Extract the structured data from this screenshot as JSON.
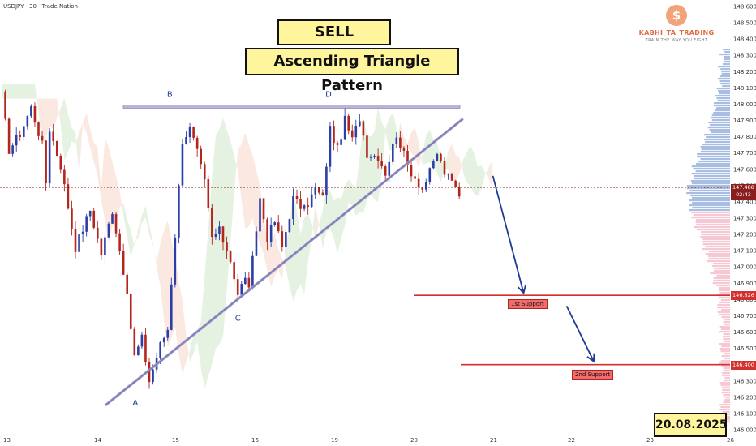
{
  "header": {
    "symbol": "USDJPY · 30 · Trade Nation"
  },
  "titles": {
    "line1": "SELL USD/JPY",
    "line2": "Ascending Triangle Pattern"
  },
  "logo": {
    "coin": "$",
    "name": "KABHI_TA_TRADING",
    "tagline": "TRAIN THE WAY YOU FIGHT"
  },
  "date_stamp": "20.08.2025",
  "supports": {
    "first": "1st Support",
    "second": "2nd Support"
  },
  "price_tags": {
    "current_price": "147.488",
    "current_timer": "02:43",
    "support1": "146.826",
    "support2": "146.400"
  },
  "pattern_points": [
    "A",
    "B",
    "C",
    "D"
  ],
  "colors": {
    "bullish": "#2c3ea8",
    "bearish": "#b3261e",
    "support": "#d32f2f",
    "arrow": "#1f3a93",
    "trendline": "#9a9ac8",
    "title_bg": "#fff59d"
  },
  "chart_data": {
    "type": "candlestick",
    "title": "",
    "xlabel": "",
    "ylabel": "",
    "ylim": [
      146.0,
      148.6
    ],
    "y_ticks": [
      "148.600",
      "148.500",
      "148.400",
      "148.300",
      "148.200",
      "148.100",
      "148.000",
      "147.900",
      "147.800",
      "147.700",
      "147.600",
      "147.500",
      "147.400",
      "147.300",
      "147.200",
      "147.100",
      "147.000",
      "146.900",
      "146.800",
      "146.700",
      "146.600",
      "146.500",
      "146.400",
      "146.300",
      "146.200",
      "146.100",
      "146.000"
    ],
    "x_ticks": [
      "13",
      "14",
      "15",
      "16",
      "19",
      "20",
      "21",
      "22",
      "23",
      "26"
    ],
    "price_path": [
      [
        0.0,
        148.05
      ],
      [
        2,
        147.72
      ],
      [
        5,
        147.82
      ],
      [
        8,
        147.98
      ],
      [
        11,
        147.75
      ],
      [
        12,
        147.52
      ],
      [
        13,
        147.85
      ],
      [
        16,
        147.62
      ],
      [
        20,
        147.12
      ],
      [
        24,
        147.35
      ],
      [
        27,
        147.08
      ],
      [
        30,
        147.35
      ],
      [
        33,
        146.98
      ],
      [
        36,
        146.45
      ],
      [
        38,
        146.56
      ],
      [
        40,
        146.3
      ],
      [
        43,
        146.52
      ],
      [
        45,
        146.62
      ],
      [
        47,
        147.2
      ],
      [
        49,
        147.78
      ],
      [
        51,
        147.85
      ],
      [
        53,
        147.7
      ],
      [
        55,
        147.52
      ],
      [
        57,
        147.18
      ],
      [
        59,
        147.22
      ],
      [
        62,
        147.05
      ],
      [
        64,
        146.82
      ],
      [
        66,
        146.95
      ],
      [
        67,
        146.85
      ],
      [
        70,
        147.42
      ],
      [
        72,
        147.18
      ],
      [
        74,
        147.28
      ],
      [
        76,
        147.12
      ],
      [
        79,
        147.42
      ],
      [
        82,
        147.35
      ],
      [
        85,
        147.48
      ],
      [
        87,
        147.42
      ],
      [
        89,
        147.85
      ],
      [
        91,
        147.72
      ],
      [
        93,
        147.9
      ],
      [
        95,
        147.78
      ],
      [
        97,
        147.92
      ],
      [
        99,
        147.7
      ],
      [
        102,
        147.68
      ],
      [
        104,
        147.58
      ],
      [
        107,
        147.82
      ],
      [
        110,
        147.62
      ],
      [
        112,
        147.55
      ],
      [
        114,
        147.48
      ],
      [
        116,
        147.58
      ],
      [
        118,
        147.7
      ],
      [
        120,
        147.58
      ],
      [
        122,
        147.52
      ],
      [
        124,
        147.45
      ]
    ],
    "reference_lines": [
      {
        "name": "resistance",
        "y": 147.985
      },
      {
        "name": "support1",
        "y": 146.826
      },
      {
        "name": "support2",
        "y": 146.4
      },
      {
        "name": "current",
        "y": 147.488
      }
    ],
    "trendline": {
      "from": [
        25,
        146.15
      ],
      "to": [
        125,
        147.91
      ]
    },
    "pattern_points": [
      {
        "label": "A",
        "x": 36,
        "y": 146.22
      },
      {
        "label": "B",
        "x": 46,
        "y": 148.0
      },
      {
        "label": "C",
        "x": 64,
        "y": 146.74
      },
      {
        "label": "D",
        "x": 89,
        "y": 148.0
      }
    ],
    "projection": [
      {
        "from": [
          132,
          147.56
        ],
        "to": [
          141,
          146.84
        ]
      },
      {
        "from": [
          152,
          146.76
        ],
        "to": [
          160,
          146.42
        ]
      }
    ]
  }
}
